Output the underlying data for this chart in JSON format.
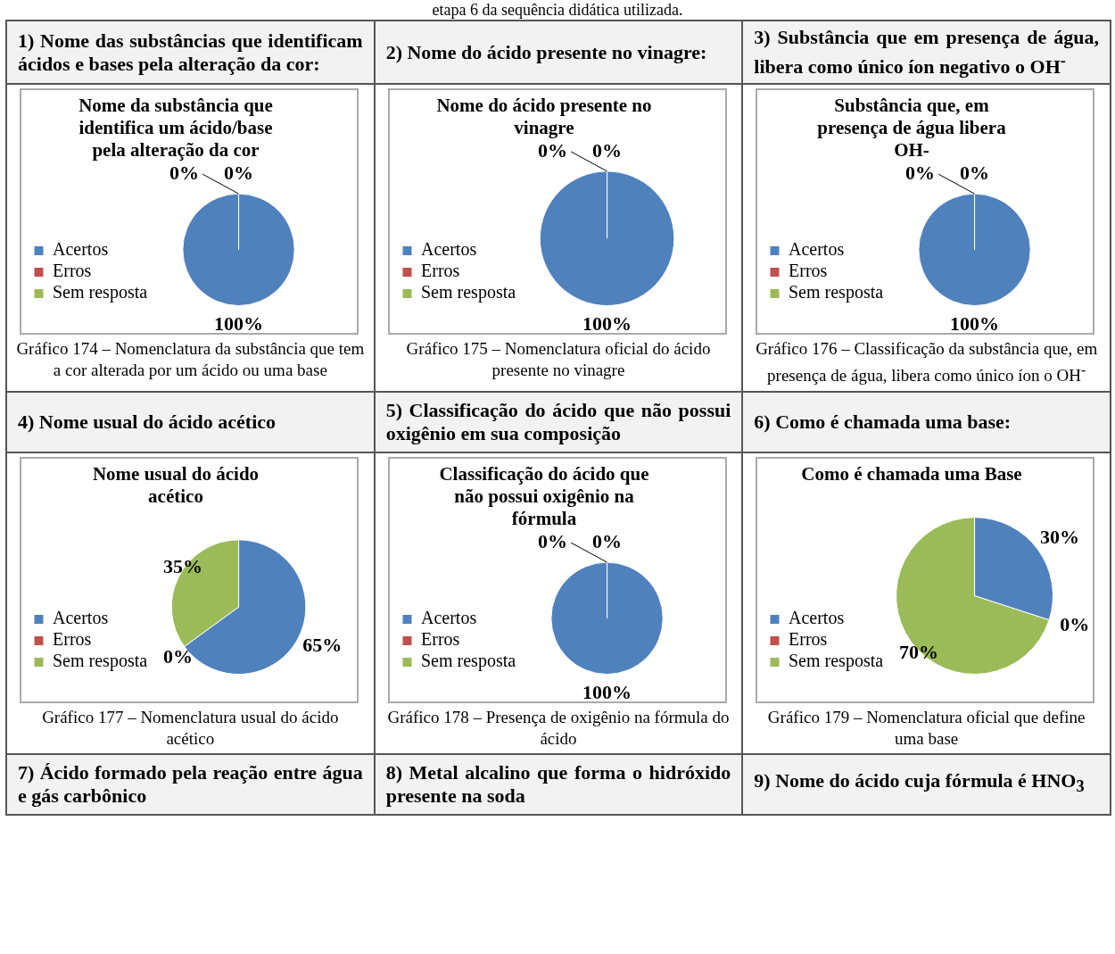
{
  "chart_data": [
    {
      "type": "other",
      "annotations": [
        "etapa 6 da sequência didática utilizada."
      ]
    },
    {
      "type": "pie",
      "title": "Nome da substância que identifica um ácido/base pela alteração da cor",
      "categories": [
        "Acertos",
        "Erros",
        "Sem resposta"
      ],
      "values": [
        100,
        0,
        0
      ],
      "colors": [
        "#4f81bd",
        "#c0504d",
        "#9bbb59"
      ],
      "value_labels": [
        "100%",
        "0%",
        "0%"
      ],
      "legend": "left",
      "annotations": [
        "1) Nome das substâncias que identificam ácidos e bases pela alteração da cor:",
        "Gráfico 174 – Nomenclatura da substância que tem a cor alterada por um ácido ou uma base"
      ]
    },
    {
      "type": "pie",
      "title": "Nome do ácido presente no vinagre",
      "categories": [
        "Acertos",
        "Erros",
        "Sem resposta"
      ],
      "values": [
        100,
        0,
        0
      ],
      "colors": [
        "#4f81bd",
        "#c0504d",
        "#9bbb59"
      ],
      "value_labels": [
        "100%",
        "0%",
        "0%"
      ],
      "legend": "left",
      "annotations": [
        "2) Nome do ácido presente no vinagre:",
        "Gráfico 175 – Nomenclatura oficial do ácido presente no vinagre"
      ]
    },
    {
      "type": "pie",
      "title": "Substância que, em presença de água libera OH-",
      "categories": [
        "Acertos",
        "Erros",
        "Sem resposta"
      ],
      "values": [
        100,
        0,
        0
      ],
      "colors": [
        "#4f81bd",
        "#c0504d",
        "#9bbb59"
      ],
      "value_labels": [
        "100%",
        "0%",
        "0%"
      ],
      "legend": "left",
      "annotations": [
        "3) Substância que em presença de água, libera como único íon negativo o OH$^{-}$",
        "Gráfico 176 – Classificação da substância que, em presença de água, libera como único íon o OH$^{-}$"
      ]
    },
    {
      "type": "pie",
      "title": "Nome usual do ácido acético",
      "categories": [
        "Acertos",
        "Erros",
        "Sem resposta"
      ],
      "values": [
        65,
        0,
        35
      ],
      "colors": [
        "#4f81bd",
        "#c0504d",
        "#9bbb59"
      ],
      "value_labels": [
        "65%",
        "0%",
        "35%"
      ],
      "legend": "left",
      "annotations": [
        "4) Nome usual do ácido acético",
        "Gráfico 177 – Nomenclatura usual do ácido acético"
      ]
    },
    {
      "type": "pie",
      "title": "Classificação do ácido que não possui oxigênio na fórmula",
      "categories": [
        "Acertos",
        "Erros",
        "Sem resposta"
      ],
      "values": [
        100,
        0,
        0
      ],
      "colors": [
        "#4f81bd",
        "#c0504d",
        "#9bbb59"
      ],
      "value_labels": [
        "100%",
        "0%",
        "0%"
      ],
      "legend": "left",
      "annotations": [
        "5) Classificação do ácido que não possui oxigênio em sua composição",
        "Gráfico 178 – Presença de oxigênio na fórmula do ácido"
      ]
    },
    {
      "type": "pie",
      "title": "Como é chamada uma Base",
      "categories": [
        "Acertos",
        "Erros",
        "Sem resposta"
      ],
      "values": [
        30,
        0,
        70
      ],
      "colors": [
        "#4f81bd",
        "#c0504d",
        "#9bbb59"
      ],
      "value_labels": [
        "30%",
        "0%",
        "70%"
      ],
      "legend": "left",
      "annotations": [
        "6) Como é chamada uma base:",
        "Gráfico 179 – Nomenclatura oficial que define uma base"
      ]
    },
    {
      "type": "other",
      "annotations": [
        "7) Ácido formado pela reação entre água e gás carbônico",
        "8) Metal alcalino que forma o hidróxido presente na soda",
        "9) Nome do ácido cuja fórmula é HNO$_{3}$"
      ]
    }
  ]
}
